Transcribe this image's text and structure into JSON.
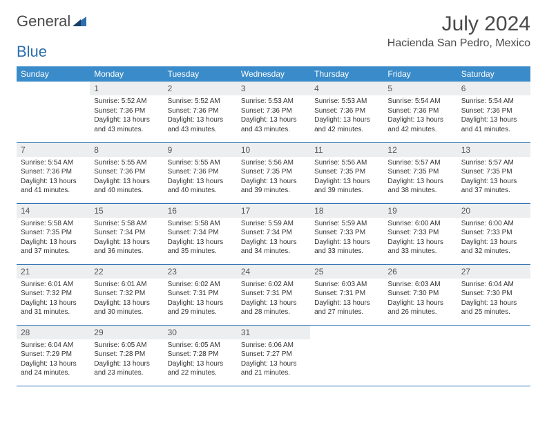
{
  "brand": {
    "part1": "General",
    "part2": "Blue"
  },
  "title": "July 2024",
  "location": "Hacienda San Pedro, Mexico",
  "weekdays": [
    "Sunday",
    "Monday",
    "Tuesday",
    "Wednesday",
    "Thursday",
    "Friday",
    "Saturday"
  ],
  "colors": {
    "header_bg": "#3a8bc9",
    "header_text": "#ffffff",
    "daynum_bg": "#eceeef",
    "rule": "#2b6fb0",
    "body_text": "#333333"
  },
  "start_weekday": 1,
  "days": [
    {
      "n": 1,
      "sunrise": "5:52 AM",
      "sunset": "7:36 PM",
      "daylight": "13 hours and 43 minutes."
    },
    {
      "n": 2,
      "sunrise": "5:52 AM",
      "sunset": "7:36 PM",
      "daylight": "13 hours and 43 minutes."
    },
    {
      "n": 3,
      "sunrise": "5:53 AM",
      "sunset": "7:36 PM",
      "daylight": "13 hours and 43 minutes."
    },
    {
      "n": 4,
      "sunrise": "5:53 AM",
      "sunset": "7:36 PM",
      "daylight": "13 hours and 42 minutes."
    },
    {
      "n": 5,
      "sunrise": "5:54 AM",
      "sunset": "7:36 PM",
      "daylight": "13 hours and 42 minutes."
    },
    {
      "n": 6,
      "sunrise": "5:54 AM",
      "sunset": "7:36 PM",
      "daylight": "13 hours and 41 minutes."
    },
    {
      "n": 7,
      "sunrise": "5:54 AM",
      "sunset": "7:36 PM",
      "daylight": "13 hours and 41 minutes."
    },
    {
      "n": 8,
      "sunrise": "5:55 AM",
      "sunset": "7:36 PM",
      "daylight": "13 hours and 40 minutes."
    },
    {
      "n": 9,
      "sunrise": "5:55 AM",
      "sunset": "7:36 PM",
      "daylight": "13 hours and 40 minutes."
    },
    {
      "n": 10,
      "sunrise": "5:56 AM",
      "sunset": "7:35 PM",
      "daylight": "13 hours and 39 minutes."
    },
    {
      "n": 11,
      "sunrise": "5:56 AM",
      "sunset": "7:35 PM",
      "daylight": "13 hours and 39 minutes."
    },
    {
      "n": 12,
      "sunrise": "5:57 AM",
      "sunset": "7:35 PM",
      "daylight": "13 hours and 38 minutes."
    },
    {
      "n": 13,
      "sunrise": "5:57 AM",
      "sunset": "7:35 PM",
      "daylight": "13 hours and 37 minutes."
    },
    {
      "n": 14,
      "sunrise": "5:58 AM",
      "sunset": "7:35 PM",
      "daylight": "13 hours and 37 minutes."
    },
    {
      "n": 15,
      "sunrise": "5:58 AM",
      "sunset": "7:34 PM",
      "daylight": "13 hours and 36 minutes."
    },
    {
      "n": 16,
      "sunrise": "5:58 AM",
      "sunset": "7:34 PM",
      "daylight": "13 hours and 35 minutes."
    },
    {
      "n": 17,
      "sunrise": "5:59 AM",
      "sunset": "7:34 PM",
      "daylight": "13 hours and 34 minutes."
    },
    {
      "n": 18,
      "sunrise": "5:59 AM",
      "sunset": "7:33 PM",
      "daylight": "13 hours and 33 minutes."
    },
    {
      "n": 19,
      "sunrise": "6:00 AM",
      "sunset": "7:33 PM",
      "daylight": "13 hours and 33 minutes."
    },
    {
      "n": 20,
      "sunrise": "6:00 AM",
      "sunset": "7:33 PM",
      "daylight": "13 hours and 32 minutes."
    },
    {
      "n": 21,
      "sunrise": "6:01 AM",
      "sunset": "7:32 PM",
      "daylight": "13 hours and 31 minutes."
    },
    {
      "n": 22,
      "sunrise": "6:01 AM",
      "sunset": "7:32 PM",
      "daylight": "13 hours and 30 minutes."
    },
    {
      "n": 23,
      "sunrise": "6:02 AM",
      "sunset": "7:31 PM",
      "daylight": "13 hours and 29 minutes."
    },
    {
      "n": 24,
      "sunrise": "6:02 AM",
      "sunset": "7:31 PM",
      "daylight": "13 hours and 28 minutes."
    },
    {
      "n": 25,
      "sunrise": "6:03 AM",
      "sunset": "7:31 PM",
      "daylight": "13 hours and 27 minutes."
    },
    {
      "n": 26,
      "sunrise": "6:03 AM",
      "sunset": "7:30 PM",
      "daylight": "13 hours and 26 minutes."
    },
    {
      "n": 27,
      "sunrise": "6:04 AM",
      "sunset": "7:30 PM",
      "daylight": "13 hours and 25 minutes."
    },
    {
      "n": 28,
      "sunrise": "6:04 AM",
      "sunset": "7:29 PM",
      "daylight": "13 hours and 24 minutes."
    },
    {
      "n": 29,
      "sunrise": "6:05 AM",
      "sunset": "7:28 PM",
      "daylight": "13 hours and 23 minutes."
    },
    {
      "n": 30,
      "sunrise": "6:05 AM",
      "sunset": "7:28 PM",
      "daylight": "13 hours and 22 minutes."
    },
    {
      "n": 31,
      "sunrise": "6:06 AM",
      "sunset": "7:27 PM",
      "daylight": "13 hours and 21 minutes."
    }
  ],
  "labels": {
    "sunrise": "Sunrise: ",
    "sunset": "Sunset: ",
    "daylight": "Daylight: "
  }
}
